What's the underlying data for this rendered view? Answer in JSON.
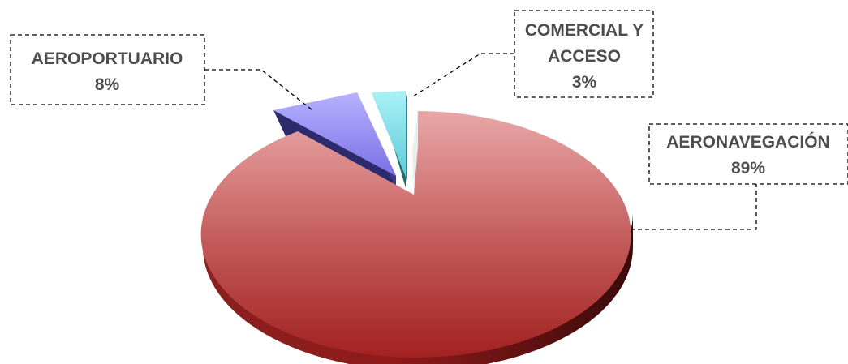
{
  "chart_data": {
    "type": "pie",
    "title": "",
    "slices": [
      {
        "label": "AERONAVEGACIÓN",
        "value": 89,
        "value_label": "89%",
        "color": "#b33a3a"
      },
      {
        "label": "AEROPORTUARIO",
        "value": 8,
        "value_label": "8%",
        "color": "#8f86ee"
      },
      {
        "label": "COMERCIAL Y ACCESO",
        "value": 3,
        "value_label": "3%",
        "color": "#78dce8"
      }
    ],
    "style": "3d-exploded",
    "legend": "none",
    "label_style": "dashed callout boxes"
  }
}
